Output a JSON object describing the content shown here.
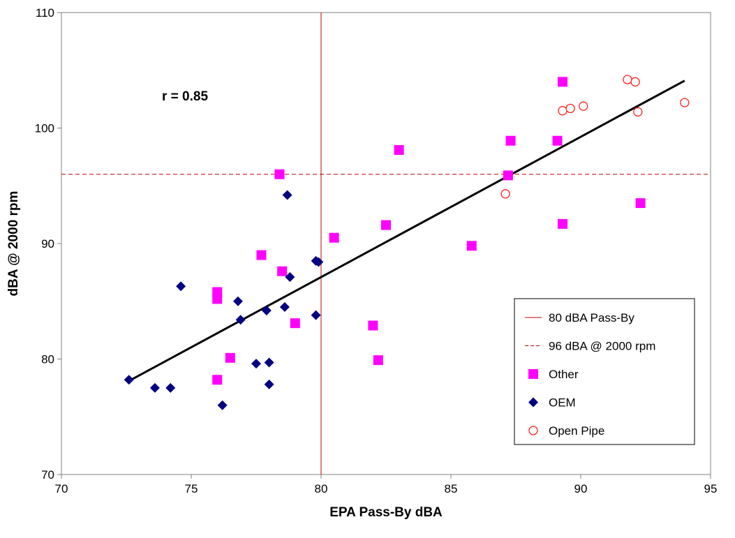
{
  "chart_data": {
    "type": "scatter",
    "xlabel": "EPA Pass-By dBA",
    "ylabel": "dBA @ 2000 rpm",
    "xlim": [
      70,
      95
    ],
    "ylim": [
      70,
      110
    ],
    "x_ticks": [
      "70",
      "75",
      "80",
      "85",
      "90",
      "95"
    ],
    "y_ticks": [
      "70",
      "80",
      "90",
      "100",
      "110"
    ],
    "grid": false,
    "legend_position": "bottom-right",
    "annotation": "r = 0.85",
    "series": [
      {
        "name": "Other",
        "marker": "square",
        "color": "#ff00ff",
        "points": [
          [
            76.0,
            85.8
          ],
          [
            76.0,
            85.2
          ],
          [
            76.0,
            78.2
          ],
          [
            76.5,
            80.1
          ],
          [
            77.7,
            89.0
          ],
          [
            78.4,
            96.0
          ],
          [
            78.5,
            87.6
          ],
          [
            79.0,
            83.1
          ],
          [
            80.5,
            90.5
          ],
          [
            82.0,
            82.9
          ],
          [
            82.2,
            79.9
          ],
          [
            82.5,
            91.6
          ],
          [
            83.0,
            98.1
          ],
          [
            85.8,
            89.8
          ],
          [
            87.2,
            95.9
          ],
          [
            87.3,
            98.9
          ],
          [
            89.1,
            98.9
          ],
          [
            89.3,
            104.0
          ],
          [
            89.3,
            91.7
          ],
          [
            92.3,
            93.5
          ]
        ]
      },
      {
        "name": "OEM",
        "marker": "diamond",
        "color": "#000080",
        "points": [
          [
            72.6,
            78.2
          ],
          [
            73.6,
            77.5
          ],
          [
            74.2,
            77.5
          ],
          [
            74.6,
            86.3
          ],
          [
            76.2,
            76.0
          ],
          [
            76.8,
            85.0
          ],
          [
            76.9,
            83.4
          ],
          [
            77.5,
            79.6
          ],
          [
            77.9,
            84.2
          ],
          [
            78.0,
            79.7
          ],
          [
            78.0,
            77.8
          ],
          [
            78.6,
            84.5
          ],
          [
            78.7,
            94.2
          ],
          [
            78.8,
            87.1
          ],
          [
            79.8,
            88.5
          ],
          [
            79.8,
            83.8
          ],
          [
            79.9,
            88.4
          ]
        ]
      },
      {
        "name": "Open Pipe",
        "marker": "open-circle",
        "color": "#ff2020",
        "points": [
          [
            87.1,
            94.3
          ],
          [
            89.3,
            101.5
          ],
          [
            89.6,
            101.7
          ],
          [
            90.1,
            101.9
          ],
          [
            91.8,
            104.2
          ],
          [
            92.1,
            104.0
          ],
          [
            92.2,
            101.4
          ],
          [
            94.0,
            102.2
          ]
        ]
      }
    ],
    "reference_lines": [
      {
        "name": "80 dBA Pass-By",
        "orientation": "vertical",
        "value": 80,
        "style": "solid",
        "color": "#c00000"
      },
      {
        "name": "96 dBA @ 2000 rpm",
        "orientation": "horizontal",
        "value": 96,
        "style": "dashed",
        "color": "#c00000"
      }
    ],
    "trendline": {
      "from": [
        72.6,
        78.1
      ],
      "to": [
        94.0,
        104.1
      ],
      "color": "#000000"
    }
  }
}
